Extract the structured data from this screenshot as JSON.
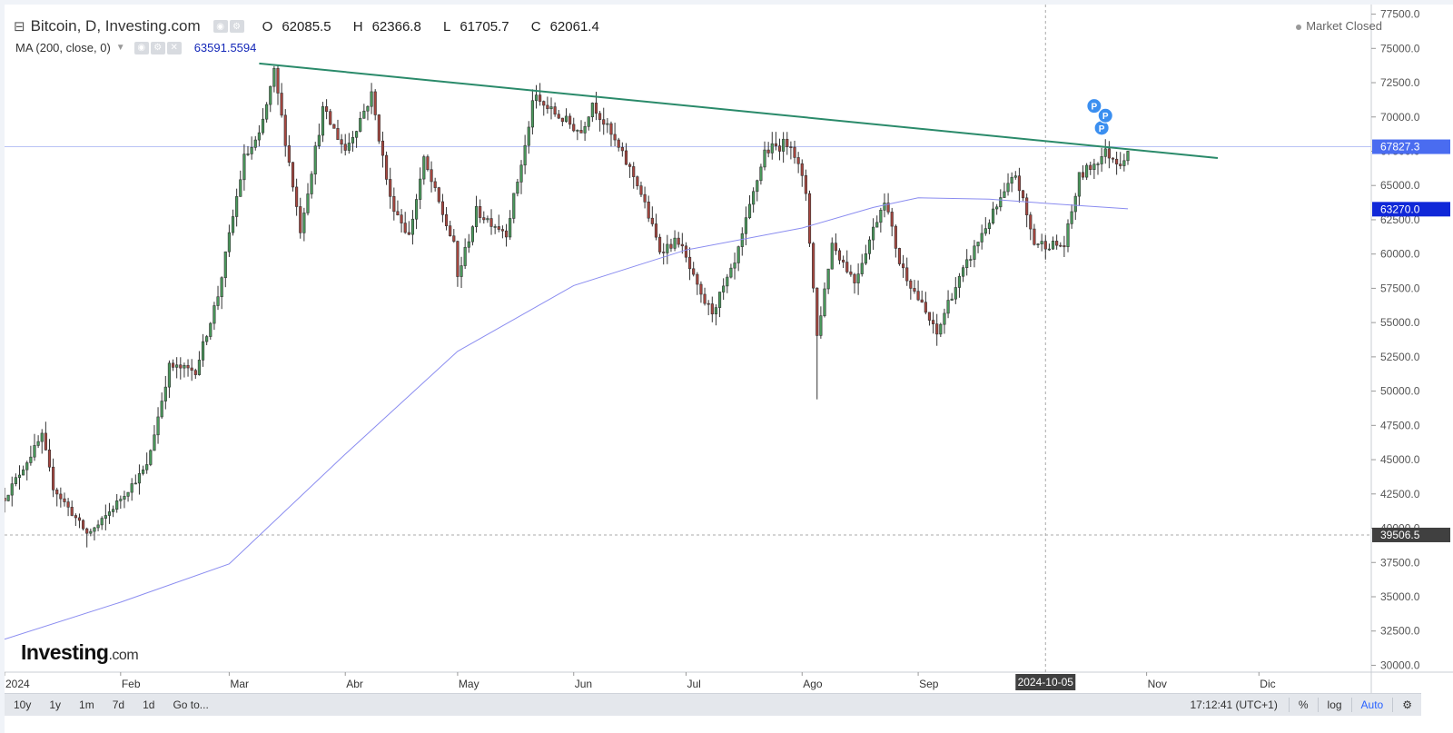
{
  "header": {
    "symbol": "Bitcoin, D, Investing.com",
    "open_label": "O",
    "open": "62085.5",
    "high_label": "H",
    "high": "62366.8",
    "low_label": "L",
    "low": "61705.7",
    "close_label": "C",
    "close": "62061.4",
    "status": "Market Closed"
  },
  "indicator": {
    "label": "MA (200, close, 0)",
    "value": "63591.5594"
  },
  "logo": {
    "main": "Investing",
    "suffix": ".com"
  },
  "bottom_bar": {
    "ranges": [
      "10y",
      "1y",
      "1m",
      "7d",
      "1d"
    ],
    "goto": "Go to...",
    "time": "17:12:41 (UTC+1)",
    "percent": "%",
    "log": "log",
    "auto": "Auto"
  },
  "colors": {
    "up": "#4a9a5c",
    "down": "#a7463f",
    "trendline": "#2a8a6a",
    "ma": "#8a8cf0",
    "price_tag": "#4a6cf0",
    "ma_tag": "#1028d8",
    "crosshair_tag": "#404040"
  },
  "chart_data": {
    "type": "candlestick",
    "title": "Bitcoin, D, Investing.com",
    "ylim": [
      29500,
      78200
    ],
    "y_ticks": [
      30000,
      32500,
      35000,
      37500,
      40000,
      42500,
      45000,
      47500,
      50000,
      52500,
      55000,
      57500,
      60000,
      62500,
      65000,
      67500,
      70000,
      72500,
      75000,
      77500
    ],
    "y_tick_labels": [
      "30000.0",
      "32500.0",
      "35000.0",
      "37500.0",
      "40000.0",
      "42500.0",
      "45000.0",
      "47500.0",
      "50000.0",
      "52500.0",
      "55000.0",
      "57500.0",
      "60000.0",
      "62500.0",
      "65000.0",
      "67500.0",
      "70000.0",
      "72500.0",
      "75000.0",
      "77500.0"
    ],
    "x_start": "2024-01-01",
    "x_end": "2024-12-31",
    "x_ticks": [
      {
        "date": "2024-01-01",
        "label": "2024"
      },
      {
        "date": "2024-02-01",
        "label": "Feb"
      },
      {
        "date": "2024-03-01",
        "label": "Mar"
      },
      {
        "date": "2024-04-01",
        "label": "Abr"
      },
      {
        "date": "2024-05-01",
        "label": "May"
      },
      {
        "date": "2024-06-01",
        "label": "Jun"
      },
      {
        "date": "2024-07-01",
        "label": "Jul"
      },
      {
        "date": "2024-08-01",
        "label": "Ago"
      },
      {
        "date": "2024-09-01",
        "label": "Sep"
      },
      {
        "date": "2024-11-01",
        "label": "Nov"
      },
      {
        "date": "2024-12-01",
        "label": "Dic"
      }
    ],
    "anchors": [
      [
        "2024-01-01",
        42200
      ],
      [
        "2024-01-11",
        46700
      ],
      [
        "2024-01-14",
        43000
      ],
      [
        "2024-01-23",
        39600
      ],
      [
        "2024-01-26",
        40200
      ],
      [
        "2024-02-08",
        44500
      ],
      [
        "2024-02-14",
        51800
      ],
      [
        "2024-02-21",
        51500
      ],
      [
        "2024-02-27",
        57000
      ],
      [
        "2024-03-05",
        67000
      ],
      [
        "2024-03-09",
        68500
      ],
      [
        "2024-03-13",
        73200
      ],
      [
        "2024-03-20",
        61800
      ],
      [
        "2024-03-26",
        70500
      ],
      [
        "2024-04-01",
        67600
      ],
      [
        "2024-04-08",
        71600
      ],
      [
        "2024-04-13",
        64000
      ],
      [
        "2024-04-18",
        61300
      ],
      [
        "2024-04-22",
        66800
      ],
      [
        "2024-04-30",
        60600
      ],
      [
        "2024-05-01",
        58300
      ],
      [
        "2024-05-06",
        63100
      ],
      [
        "2024-05-14",
        61600
      ],
      [
        "2024-05-20",
        69100
      ],
      [
        "2024-05-21",
        71400
      ],
      [
        "2024-06-03",
        68900
      ],
      [
        "2024-06-06",
        71100
      ],
      [
        "2024-06-18",
        65200
      ],
      [
        "2024-06-24",
        60300
      ],
      [
        "2024-06-29",
        61000
      ],
      [
        "2024-07-05",
        56800
      ],
      [
        "2024-07-08",
        55800
      ],
      [
        "2024-07-14",
        59200
      ],
      [
        "2024-07-22",
        67500
      ],
      [
        "2024-07-29",
        68200
      ],
      [
        "2024-08-02",
        64500
      ],
      [
        "2024-08-05",
        54000
      ],
      [
        "2024-08-09",
        60800
      ],
      [
        "2024-08-15",
        58000
      ],
      [
        "2024-08-23",
        64100
      ],
      [
        "2024-08-27",
        59400
      ],
      [
        "2024-09-06",
        54100
      ],
      [
        "2024-09-09",
        56500
      ],
      [
        "2024-09-18",
        61500
      ],
      [
        "2024-09-27",
        65800
      ],
      [
        "2024-10-02",
        60800
      ],
      [
        "2024-10-10",
        60600
      ],
      [
        "2024-10-14",
        65600
      ],
      [
        "2024-10-21",
        67400
      ],
      [
        "2024-10-25",
        66700
      ],
      [
        "2024-10-27",
        67600
      ]
    ],
    "ma_series": [
      [
        "2024-01-01",
        31900
      ],
      [
        "2024-02-01",
        34600
      ],
      [
        "2024-03-01",
        37400
      ],
      [
        "2024-04-01",
        45400
      ],
      [
        "2024-05-01",
        52900
      ],
      [
        "2024-06-01",
        57700
      ],
      [
        "2024-07-01",
        60300
      ],
      [
        "2024-08-01",
        61900
      ],
      [
        "2024-08-20",
        63400
      ],
      [
        "2024-09-01",
        64100
      ],
      [
        "2024-09-20",
        64000
      ],
      [
        "2024-10-10",
        63600
      ],
      [
        "2024-10-27",
        63300
      ]
    ],
    "trendline": [
      [
        "2024-03-09",
        73900
      ],
      [
        "2024-11-20",
        67000
      ]
    ],
    "wick_extremes": [
      [
        "2024-08-05",
        49400
      ],
      [
        "2024-01-23",
        38600
      ],
      [
        "2024-03-14",
        73800
      ]
    ],
    "markers": [
      {
        "date": "2024-10-18",
        "value": 70800,
        "label": "P"
      },
      {
        "date": "2024-10-20",
        "value": 69200,
        "label": "P"
      },
      {
        "date": "2024-10-21",
        "value": 70100,
        "label": "P"
      }
    ],
    "last_price": {
      "value": 67827.3,
      "label": "67827.3"
    },
    "ma_last": {
      "value": 63270.0,
      "label": "63270.0"
    },
    "crosshair": {
      "date": "2024-10-05",
      "value": 39506.5,
      "date_label": "2024-10-05",
      "value_label": "39506.5"
    }
  }
}
